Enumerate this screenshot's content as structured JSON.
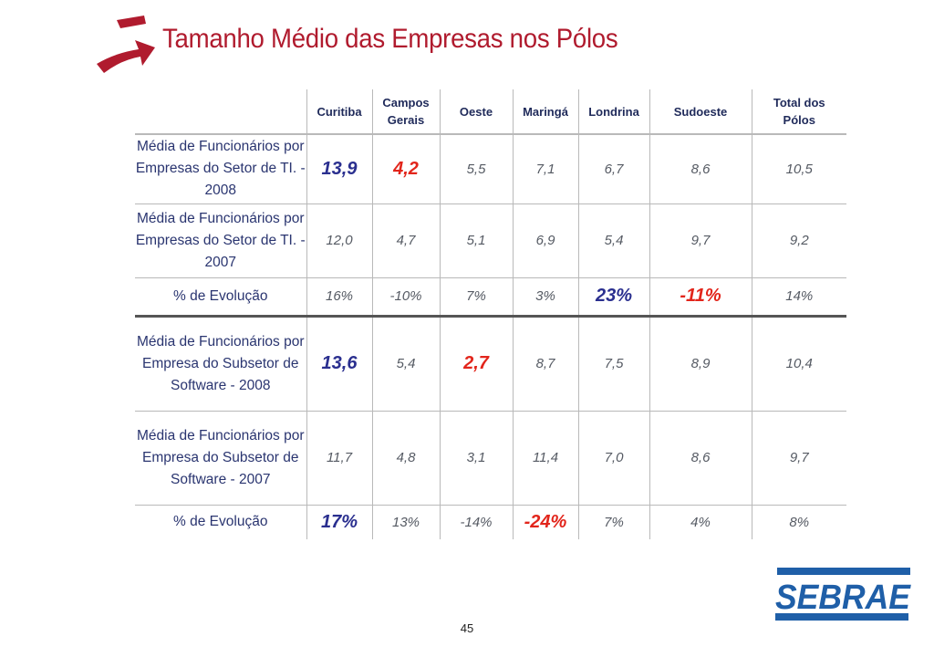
{
  "title": "Tamanho Médio das Empresas nos Pólos",
  "colors": {
    "title": "#b01b2e",
    "highlight_blue": "#2a2f8f",
    "highlight_red": "#e2251b",
    "logo_blue": "#1f5fa8"
  },
  "table": {
    "headers": [
      "",
      "Curitiba",
      "Campos Gerais",
      "Oeste",
      "Maringá",
      "Londrina",
      "Sudoeste",
      "Total dos Pólos"
    ],
    "rows": [
      {
        "label": "Média de Funcionários por Empresas do Setor de TI. - 2008",
        "values": [
          "13,9",
          "4,2",
          "5,5",
          "7,1",
          "6,7",
          "8,6",
          "10,5"
        ]
      },
      {
        "label": "Média de Funcionários por Empresas do Setor de TI. - 2007",
        "values": [
          "12,0",
          "4,7",
          "5,1",
          "6,9",
          "5,4",
          "9,7",
          "9,2"
        ]
      },
      {
        "label": "% de Evolução",
        "values": [
          "16%",
          "-10%",
          "7%",
          "3%",
          "23%",
          "-11%",
          "14%"
        ]
      },
      {
        "label": "Média de Funcionários por Empresa do Subsetor de Software - 2008",
        "values": [
          "13,6",
          "5,4",
          "2,7",
          "8,7",
          "7,5",
          "8,9",
          "10,4"
        ]
      },
      {
        "label": "Média de Funcionários por Empresa do Subsetor de Software - 2007",
        "values": [
          "11,7",
          "4,8",
          "3,1",
          "11,4",
          "7,0",
          "8,6",
          "9,7"
        ]
      },
      {
        "label": "% de Evolução",
        "values": [
          "17%",
          "13%",
          "-14%",
          "-24%",
          "7%",
          "4%",
          "8%"
        ]
      }
    ]
  },
  "page_number": "45",
  "logo_text": "SEBRAE",
  "icons": {
    "title": "red-arrow-icon"
  }
}
